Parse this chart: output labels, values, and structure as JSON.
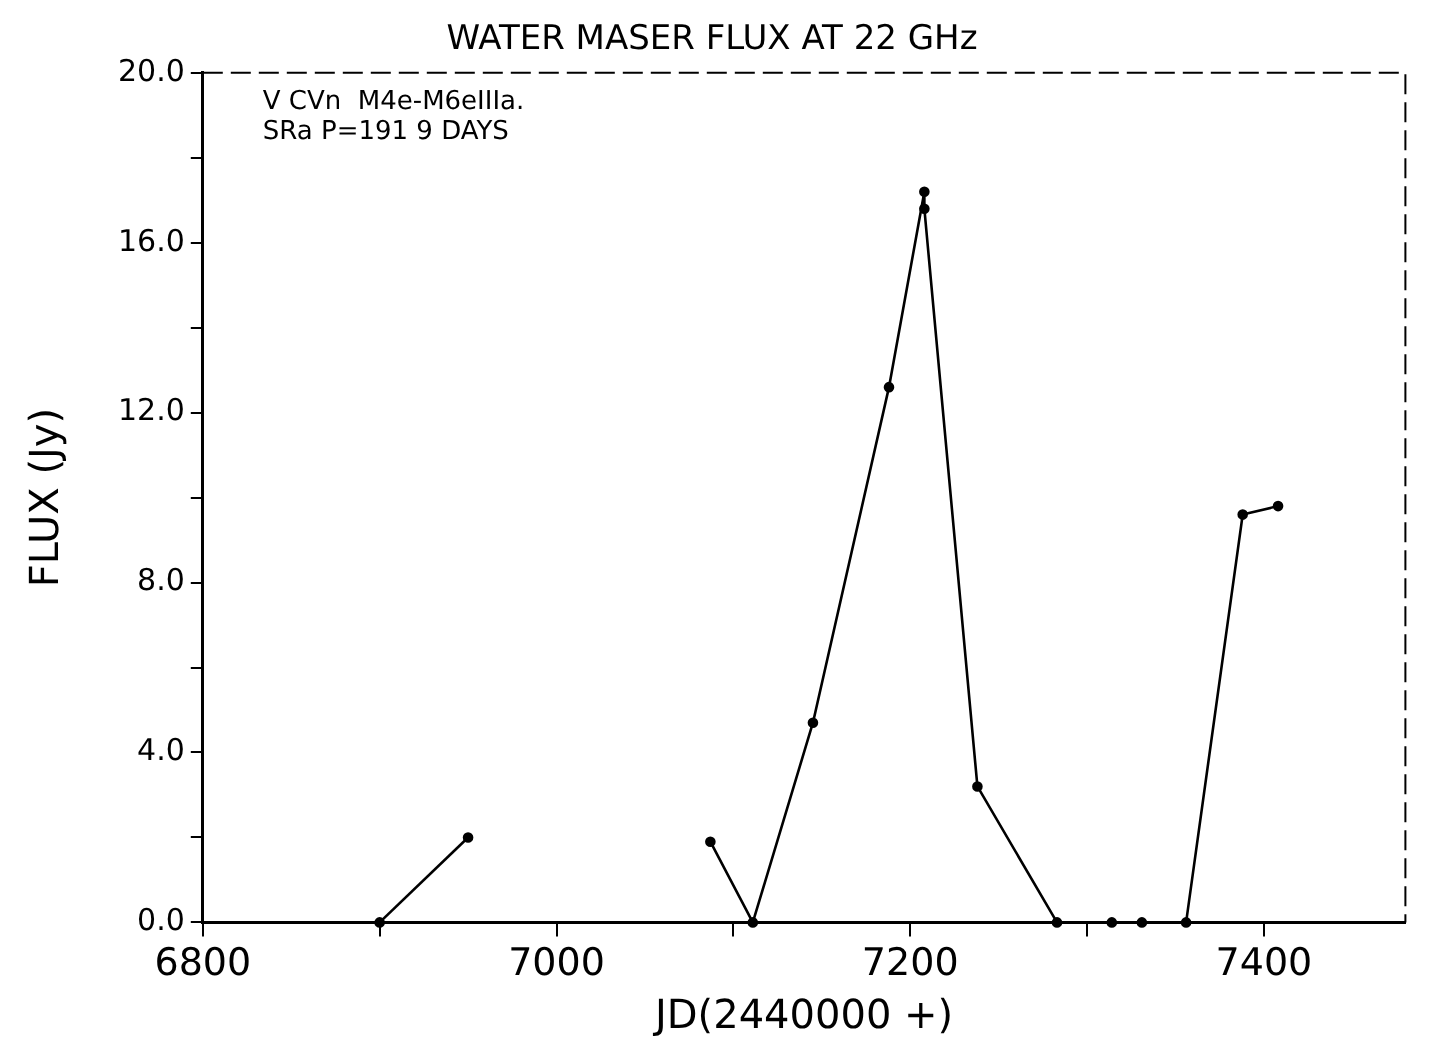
{
  "chart_data": {
    "type": "line",
    "title": "WATER MASER FLUX AT 22 GHz",
    "xlabel": "JD(2440000 +)",
    "ylabel": "FLUX (Jy)",
    "annotations": [
      "V CVn  M4e-M6eIIIa.",
      "SRa P=191 9 DAYS"
    ],
    "series": [
      {
        "color": "#000000",
        "x": [
          6900,
          6950
        ],
        "values": [
          0,
          2.0
        ]
      },
      {
        "color": "#000000",
        "x": [
          7087,
          7111,
          7145,
          7188,
          7208,
          7208,
          7238,
          7283
        ],
        "values": [
          1.9,
          0,
          4.7,
          12.6,
          17.2,
          16.8,
          3.2,
          0
        ]
      },
      {
        "type": "scatter",
        "color": "#000000",
        "x": [
          7314,
          7331
        ],
        "values": [
          0,
          0
        ]
      },
      {
        "color": "#000000",
        "x": [
          7356,
          7388,
          7408
        ],
        "values": [
          0,
          9.6,
          9.8
        ]
      }
    ],
    "xlim": [
      6800,
      7480
    ],
    "xticks": [
      6800,
      {
        "value": 6900,
        "label": null
      },
      7000,
      {
        "value": 7100,
        "label": null
      },
      7200,
      {
        "value": 7300,
        "label": null
      },
      7400
    ],
    "ylim": [
      0,
      20
    ],
    "yticks": [
      {
        "value": 0,
        "label": "0.0"
      },
      {
        "value": 2,
        "label": null
      },
      {
        "value": 4,
        "label": "4.0"
      },
      {
        "value": 6,
        "label": null
      },
      {
        "value": 8,
        "label": "8.0"
      },
      {
        "value": 10,
        "label": null
      },
      {
        "value": 12,
        "label": "12.0"
      },
      {
        "value": 14,
        "label": null
      },
      {
        "value": 16,
        "label": "16.0"
      },
      {
        "value": 18,
        "label": null
      },
      {
        "value": 20,
        "label": "20.0"
      }
    ],
    "grid": false,
    "legend": false,
    "marker": "circle",
    "line_style": "solid"
  }
}
